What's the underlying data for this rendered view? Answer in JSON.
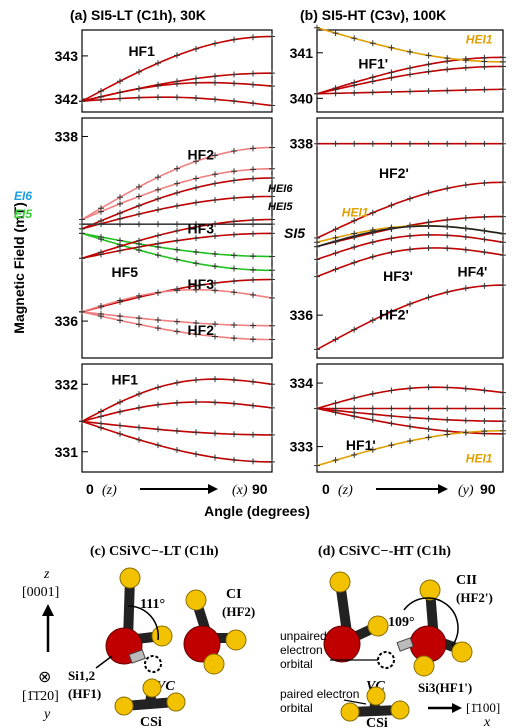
{
  "chart_data": {
    "type": "line",
    "ylabel": "Magnetic Field (mT)",
    "xlabel": "Angle (degrees)",
    "x_ticks": {
      "start": "0",
      "start_axis": "(z)",
      "end": "90"
    },
    "panels": [
      {
        "id": "a",
        "title": "(a) SI5-LT (C1h), 30K",
        "end_axis": "(x)",
        "xlim": [
          0,
          90
        ],
        "segments": [
          {
            "name": "top",
            "ylim": [
              341.7,
              343.6
            ],
            "ticks": [
              "342",
              "343"
            ],
            "tick_values": [
              342,
              343
            ],
            "labels": [
              {
                "text": "HF1",
                "at": [
                  22,
                  343.0
                ]
              }
            ],
            "series": [
              {
                "color": "#c00000",
                "start": 341.95,
                "end": 343.45,
                "shape": "up"
              },
              {
                "color": "#c00000",
                "start": 341.95,
                "end": 342.6,
                "shape": "up"
              },
              {
                "color": "#c00000",
                "start": 341.95,
                "end": 342.3,
                "shape": "hump"
              },
              {
                "color": "#c00000",
                "start": 341.95,
                "end": 341.85,
                "shape": "hump"
              }
            ]
          },
          {
            "name": "middle",
            "ylim": [
              335.6,
              338.2
            ],
            "ticks": [
              "338",
              "336"
            ],
            "tick_values": [
              338,
              336
            ],
            "labels": [
              {
                "text": "HF2",
                "at": [
                  50,
                  337.75
                ]
              },
              {
                "text": "HF3",
                "at": [
                  50,
                  336.95
                ]
              },
              {
                "text": "HF3",
                "at": [
                  50,
                  336.35
                ]
              },
              {
                "text": "HF2",
                "at": [
                  50,
                  335.85
                ]
              },
              {
                "text": "HF5",
                "at": [
                  14,
                  336.48
                ]
              }
            ],
            "series": [
              {
                "color": "#f08080",
                "start": 337.1,
                "end": 337.88,
                "shape": "up"
              },
              {
                "color": "#f08080",
                "start": 337.1,
                "end": 337.65,
                "shape": "up"
              },
              {
                "color": "#c00000",
                "start": 337.0,
                "end": 337.55,
                "shape": "up"
              },
              {
                "color": "#c00000",
                "start": 337.0,
                "end": 337.35,
                "shape": "up"
              },
              {
                "color": "#404040",
                "start": 337.05,
                "end": 337.05,
                "shape": "flat"
              },
              {
                "color": "#20c020",
                "start": 336.95,
                "end": 336.55,
                "shape": "down"
              },
              {
                "color": "#20c020",
                "start": 336.95,
                "end": 336.7,
                "shape": "down"
              },
              {
                "color": "#c00000",
                "start": 336.68,
                "end": 337.1,
                "shape": "up"
              },
              {
                "color": "#c00000",
                "start": 336.68,
                "end": 336.95,
                "shape": "up"
              },
              {
                "color": "#c00000",
                "start": 336.1,
                "end": 336.45,
                "shape": "up"
              },
              {
                "color": "#f08080",
                "start": 336.1,
                "end": 336.25,
                "shape": "hump"
              },
              {
                "color": "#f08080",
                "start": 336.1,
                "end": 335.95,
                "shape": "down"
              },
              {
                "color": "#f08080",
                "start": 336.1,
                "end": 335.8,
                "shape": "down"
              }
            ]
          },
          {
            "name": "bottom",
            "ylim": [
              330.7,
              332.3
            ],
            "ticks": [
              "332",
              "331"
            ],
            "tick_values": [
              332,
              331
            ],
            "labels": [
              {
                "text": "HF1",
                "at": [
                  14,
                  332.0
                ]
              }
            ],
            "series": [
              {
                "color": "#c00000",
                "start": 331.45,
                "end": 332.0,
                "shape": "hump"
              },
              {
                "color": "#c00000",
                "start": 331.45,
                "end": 331.65,
                "shape": "hump"
              },
              {
                "color": "#c00000",
                "start": 331.45,
                "end": 331.25,
                "shape": "down"
              },
              {
                "color": "#c00000",
                "start": 331.45,
                "end": 330.85,
                "shape": "down"
              }
            ]
          }
        ],
        "annotations": [
          {
            "text": "EI6",
            "color": "#1a9fe0",
            "row": "ei6"
          },
          {
            "text": "EI5",
            "color": "#2fd02f",
            "row": "ei5"
          }
        ]
      },
      {
        "id": "b",
        "title": "(b) SI5-HT (C3v), 100K",
        "end_axis": "(y)",
        "xlim": [
          0,
          90
        ],
        "segments": [
          {
            "name": "top",
            "ylim": [
              339.7,
              341.5
            ],
            "ticks": [
              "341",
              "340"
            ],
            "tick_values": [
              341,
              340
            ],
            "labels": [
              {
                "text": "HF1'",
                "at": [
                  20,
                  340.65
                ]
              },
              {
                "text": "HEI1",
                "at": [
                  72,
                  341.2
                ]
              }
            ],
            "series": [
              {
                "color": "#c00000",
                "start": 340.1,
                "end": 340.9,
                "shape": "up"
              },
              {
                "color": "#c00000",
                "start": 340.1,
                "end": 340.7,
                "shape": "up"
              },
              {
                "color": "#c00000",
                "start": 340.1,
                "end": 340.2,
                "shape": "flat"
              },
              {
                "color": "#e0a000",
                "start": 341.55,
                "end": 340.8,
                "shape": "down"
              }
            ]
          },
          {
            "name": "middle",
            "ylim": [
              335.5,
              338.3
            ],
            "ticks": [
              "338",
              "336"
            ],
            "tick_values": [
              338,
              336
            ],
            "labels": [
              {
                "text": "HF2'",
                "at": [
                  30,
                  337.6
                ]
              },
              {
                "text": "HEI1",
                "at": [
                  12,
                  337.15
                ]
              },
              {
                "text": "HF3'",
                "at": [
                  32,
                  336.4
                ]
              },
              {
                "text": "HF4'",
                "at": [
                  68,
                  336.45
                ]
              },
              {
                "text": "HF2'",
                "at": [
                  30,
                  335.95
                ]
              }
            ],
            "series": [
              {
                "color": "#c00000",
                "start": 338.0,
                "end": 338.0,
                "shape": "flat"
              },
              {
                "color": "#c00000",
                "start": 336.9,
                "end": 337.55,
                "shape": "up"
              },
              {
                "color": "#c00000",
                "start": 336.8,
                "end": 337.15,
                "shape": "up"
              },
              {
                "color": "#e0a000",
                "start": 336.85,
                "end": 336.95,
                "shape": "hump"
              },
              {
                "color": "#202020",
                "start": 336.8,
                "end": 336.95,
                "shape": "hump"
              },
              {
                "color": "#c00000",
                "start": 336.65,
                "end": 336.85,
                "shape": "hump"
              },
              {
                "color": "#c00000",
                "start": 336.45,
                "end": 336.7,
                "shape": "hump"
              },
              {
                "color": "#c00000",
                "start": 335.6,
                "end": 336.35,
                "shape": "up"
              }
            ]
          },
          {
            "name": "bottom",
            "ylim": [
              332.6,
              334.3
            ],
            "ticks": [
              "334",
              "333"
            ],
            "tick_values": [
              334,
              333
            ],
            "labels": [
              {
                "text": "HF1'",
                "at": [
                  14,
                  332.95
                ]
              },
              {
                "text": "HEI1",
                "at": [
                  72,
                  332.75
                ]
              }
            ],
            "series": [
              {
                "color": "#c00000",
                "start": 333.6,
                "end": 333.85,
                "shape": "hump"
              },
              {
                "color": "#c00000",
                "start": 333.6,
                "end": 333.6,
                "shape": "flat"
              },
              {
                "color": "#c00000",
                "start": 333.6,
                "end": 333.2,
                "shape": "down"
              },
              {
                "color": "#c00000",
                "start": 333.6,
                "end": 333.4,
                "shape": "down"
              },
              {
                "color": "#e0a000",
                "start": 332.7,
                "end": 333.25,
                "shape": "up"
              }
            ]
          }
        ],
        "annotations": [
          {
            "text": "HEI6",
            "color": "#000000",
            "row": "hei6"
          },
          {
            "text": "HEI5",
            "color": "#000000",
            "row": "hei5"
          },
          {
            "text": "SI5",
            "color": "#000000",
            "row": "si5"
          }
        ]
      }
    ]
  },
  "structures": {
    "c": {
      "title": "(c) CSiVC−-LT (C1h)",
      "angle": "111°",
      "site1": "Si1,2",
      "site1_hf": "(HF1)",
      "vacancy": "VC",
      "carbon": "CI",
      "carbon_hf": "(HF2)",
      "csi": "CSi"
    },
    "d": {
      "title": "(d) CSiVC−-HT (C1h)",
      "angle": "109°",
      "carbon": "CII",
      "carbon_hf": "(HF2')",
      "unpaired": [
        "unpaired",
        "electron",
        "orbital"
      ],
      "paired": [
        "paired electron",
        "orbital"
      ],
      "vacancy": "VC",
      "site3": "Si3(HF1')",
      "direction_label": "[1̄100]",
      "direction_axis": "x",
      "csi": "CSi"
    },
    "axes": {
      "z": "z",
      "z_dir": "[0001]",
      "y_dir": "[1̄1̄20]",
      "y": "y",
      "into": "⊗"
    }
  },
  "colors": {
    "red": "#c00000",
    "pink": "#f08080",
    "green": "#20c020",
    "blue": "#1a9fe0",
    "orange": "#e0a000",
    "yellow_atom": "#f2c200",
    "red_atom": "#c00000"
  }
}
